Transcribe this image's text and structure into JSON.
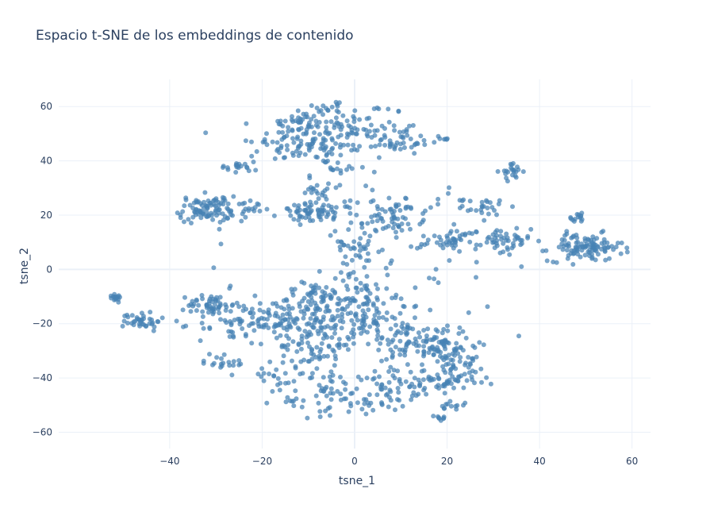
{
  "chart_data": {
    "type": "scatter",
    "title": "Espacio t-SNE de los embeddings de contenido",
    "xlabel": "tsne_1",
    "ylabel": "tsne_2",
    "xlim": [
      -64,
      64
    ],
    "ylim": [
      -66,
      70
    ],
    "xticks": [
      -40,
      -20,
      0,
      20,
      40,
      60
    ],
    "yticks": [
      -60,
      -40,
      -20,
      0,
      20,
      40,
      60
    ],
    "xtick_labels": [
      "−40",
      "−20",
      "0",
      "20",
      "40",
      "60"
    ],
    "ytick_labels": [
      "−60",
      "−40",
      "−20",
      "0",
      "20",
      "40",
      "60"
    ],
    "grid": true,
    "legend": "none",
    "marker_color": "#4682b4",
    "marker_opacity": 0.72,
    "clusters_estimated": [
      {
        "cx": -8,
        "cy": 48,
        "sx": 6,
        "sy": 5,
        "n": 110
      },
      {
        "cx": -12,
        "cy": 54,
        "sx": 3,
        "sy": 3,
        "n": 30
      },
      {
        "cx": -5,
        "cy": 60,
        "sx": 2,
        "sy": 1.2,
        "n": 14
      },
      {
        "cx": 3,
        "cy": 52,
        "sx": 4,
        "sy": 5,
        "n": 45
      },
      {
        "cx": 10,
        "cy": 47,
        "sx": 3,
        "sy": 2.5,
        "n": 35
      },
      {
        "cx": 18,
        "cy": 48,
        "sx": 1.2,
        "sy": 0.6,
        "n": 8
      },
      {
        "cx": -17,
        "cy": 45,
        "sx": 3,
        "sy": 2,
        "n": 15
      },
      {
        "cx": -25,
        "cy": 38,
        "sx": 2,
        "sy": 1.6,
        "n": 20
      },
      {
        "cx": -2,
        "cy": 37,
        "sx": 1.5,
        "sy": 1,
        "n": 10
      },
      {
        "cx": 34,
        "cy": 36,
        "sx": 1.2,
        "sy": 1.5,
        "n": 22
      },
      {
        "cx": -8,
        "cy": 30,
        "sx": 2,
        "sy": 2.5,
        "n": 18
      },
      {
        "cx": -32,
        "cy": 22,
        "sx": 3,
        "sy": 2.5,
        "n": 90
      },
      {
        "cx": -23,
        "cy": 22,
        "sx": 1.8,
        "sy": 1.8,
        "n": 18
      },
      {
        "cx": -8,
        "cy": 21,
        "sx": 4,
        "sy": 1.8,
        "n": 70
      },
      {
        "cx": 9,
        "cy": 20,
        "sx": 3,
        "sy": 3,
        "n": 55
      },
      {
        "cx": 0,
        "cy": 8,
        "sx": 2,
        "sy": 6,
        "n": 40
      },
      {
        "cx": 22,
        "cy": 11,
        "sx": 3,
        "sy": 2,
        "n": 45
      },
      {
        "cx": 28,
        "cy": 23,
        "sx": 2.5,
        "sy": 1.5,
        "n": 25
      },
      {
        "cx": 32,
        "cy": 10,
        "sx": 3,
        "sy": 3,
        "n": 45
      },
      {
        "cx": 48,
        "cy": 19,
        "sx": 1.5,
        "sy": 0.8,
        "n": 14
      },
      {
        "cx": 50,
        "cy": 8,
        "sx": 4,
        "sy": 2.5,
        "n": 110
      },
      {
        "cx": -52,
        "cy": -10,
        "sx": 1,
        "sy": 0.8,
        "n": 16
      },
      {
        "cx": -46,
        "cy": -19,
        "sx": 2,
        "sy": 1.8,
        "n": 38
      },
      {
        "cx": -31,
        "cy": -13,
        "sx": 2.5,
        "sy": 2,
        "n": 50
      },
      {
        "cx": -26,
        "cy": -20,
        "sx": 4,
        "sy": 4,
        "n": 50
      },
      {
        "cx": -18,
        "cy": -18,
        "sx": 3,
        "sy": 4,
        "n": 45
      },
      {
        "cx": -9,
        "cy": -15,
        "sx": 4,
        "sy": 5,
        "n": 90
      },
      {
        "cx": 0,
        "cy": -12,
        "sx": 5,
        "sy": 5,
        "n": 90
      },
      {
        "cx": -8,
        "cy": -28,
        "sx": 4,
        "sy": 5,
        "n": 80
      },
      {
        "cx": -5,
        "cy": -45,
        "sx": 3,
        "sy": 4,
        "n": 40
      },
      {
        "cx": 8,
        "cy": -22,
        "sx": 5,
        "sy": 5,
        "n": 70
      },
      {
        "cx": 17,
        "cy": -28,
        "sx": 4,
        "sy": 4,
        "n": 80
      },
      {
        "cx": 8,
        "cy": -42,
        "sx": 3,
        "sy": 4,
        "n": 40
      },
      {
        "cx": 18,
        "cy": -42,
        "sx": 4,
        "sy": 3,
        "n": 50
      },
      {
        "cx": 23,
        "cy": -35,
        "sx": 3,
        "sy": 4,
        "n": 45
      },
      {
        "cx": -28,
        "cy": -34,
        "sx": 2.5,
        "sy": 2,
        "n": 20
      },
      {
        "cx": -16,
        "cy": -40,
        "sx": 2.5,
        "sy": 2.5,
        "n": 22
      },
      {
        "cx": 18,
        "cy": -55,
        "sx": 1,
        "sy": 0.6,
        "n": 8
      },
      {
        "cx": 21,
        "cy": -50,
        "sx": 1.5,
        "sy": 0.8,
        "n": 12
      },
      {
        "cx": 4,
        "cy": -49,
        "sx": 3,
        "sy": 2,
        "n": 20
      },
      {
        "cx": -13,
        "cy": -49,
        "sx": 2,
        "sy": 1,
        "n": 10
      },
      {
        "cx": 0,
        "cy": 0,
        "sx": 14,
        "sy": 28,
        "n": 70
      },
      {
        "cx": 12,
        "cy": 14,
        "sx": 10,
        "sy": 10,
        "n": 30
      }
    ]
  }
}
